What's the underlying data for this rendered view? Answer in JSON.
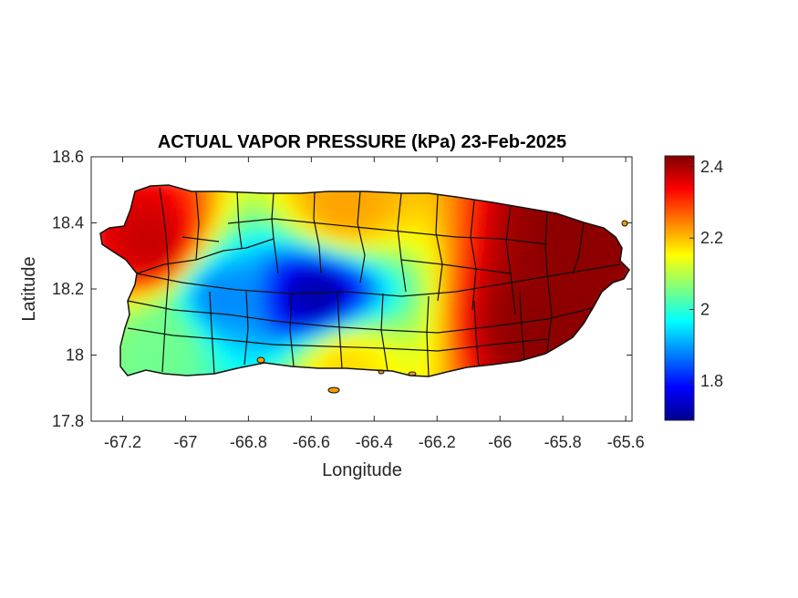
{
  "chart_data": {
    "type": "heatmap",
    "title": "ACTUAL VAPOR PRESSURE (kPa) 23-Feb-2025",
    "xlabel": "Longitude",
    "ylabel": "Latitude",
    "xlim": [
      -67.3,
      -65.58
    ],
    "ylim": [
      17.8,
      18.6
    ],
    "x_ticks": [
      -67.2,
      -67,
      -66.8,
      -66.6,
      -66.4,
      -66.2,
      -66,
      -65.8,
      -65.6
    ],
    "x_tick_labels": [
      "-67.2",
      "-67",
      "-66.8",
      "-66.6",
      "-66.4",
      "-66.2",
      "-66",
      "-65.8",
      "-65.6"
    ],
    "y_ticks": [
      17.8,
      18,
      18.2,
      18.4,
      18.6
    ],
    "y_tick_labels": [
      "17.8",
      "18",
      "18.2",
      "18.4",
      "18.6"
    ],
    "colorbar": {
      "colormap": "jet",
      "range": [
        1.69,
        2.43
      ],
      "ticks": [
        1.8,
        2,
        2.2,
        2.4
      ],
      "tick_labels": [
        "1.8",
        "2",
        "2.2",
        "2.4"
      ]
    },
    "field_features": [
      {
        "description": "low minimum (blue) in central interior",
        "lon": -66.58,
        "lat": 18.17,
        "value": 1.72
      },
      {
        "description": "low (cyan) band across west-central interior",
        "lon": -66.9,
        "lat": 18.17,
        "value": 1.88
      },
      {
        "description": "high (red) northwest coast",
        "lon": -67.1,
        "lat": 18.33,
        "value": 2.38
      },
      {
        "description": "high (dark red) southeast",
        "lon": -65.85,
        "lat": 18.1,
        "value": 2.42
      },
      {
        "description": "high (dark red) northeast",
        "lon": -65.75,
        "lat": 18.37,
        "value": 2.42
      },
      {
        "description": "moderate (yellow/orange) north coast",
        "lon": -66.5,
        "lat": 18.45,
        "value": 2.22
      },
      {
        "description": "moderate (yellow) south coast",
        "lon": -66.5,
        "lat": 17.98,
        "value": 2.18
      },
      {
        "description": "moderate (green) southwest",
        "lon": -67.05,
        "lat": 18.05,
        "value": 2.05
      }
    ],
    "grid": false
  }
}
